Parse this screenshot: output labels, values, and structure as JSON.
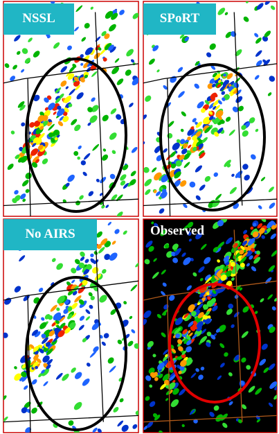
{
  "panels": [
    {
      "label": "NSSL"
    },
    {
      "label": "SPoRT"
    },
    {
      "label": "No AIRS"
    },
    {
      "label": "Observed"
    }
  ]
}
